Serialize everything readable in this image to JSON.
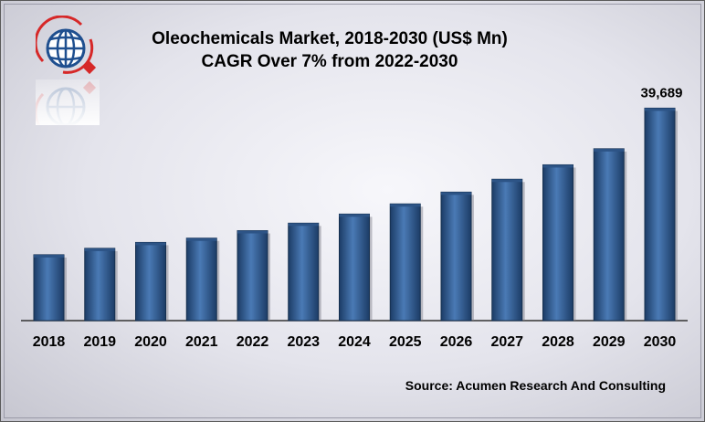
{
  "title_line1": "Oleochemicals  Market, 2018-2030 (US$ Mn)",
  "title_line2": "CAGR Over 7% from 2022-2030",
  "source": "Source: Acumen Research And Consulting",
  "colors": {
    "bar_dark": "#1c3c66",
    "bar_light": "#4a7ab5",
    "bar_top": "#2d5486",
    "logo_red": "#d62828",
    "logo_blue": "#1f4f8f"
  },
  "icons": [
    "globe-logo-icon"
  ],
  "chart_data": {
    "type": "bar",
    "title": "Oleochemicals  Market, 2018-2030 (US$ Mn)",
    "subtitle": "CAGR Over 7% from 2022-2030",
    "categories": [
      "2018",
      "2019",
      "2020",
      "2021",
      "2022",
      "2023",
      "2024",
      "2025",
      "2026",
      "2027",
      "2028",
      "2029",
      "2030"
    ],
    "values": [
      12300,
      13500,
      14600,
      15400,
      16800,
      18200,
      19900,
      21800,
      24000,
      26400,
      29100,
      32100,
      39689
    ],
    "data_labels": [
      "",
      "",
      "",
      "",
      "",
      "",
      "",
      "",
      "",
      "",
      "",
      "",
      "39,689"
    ],
    "ylim": [
      0,
      43000
    ],
    "xlabel": "",
    "ylabel": "",
    "grid": false,
    "legend": "none"
  }
}
